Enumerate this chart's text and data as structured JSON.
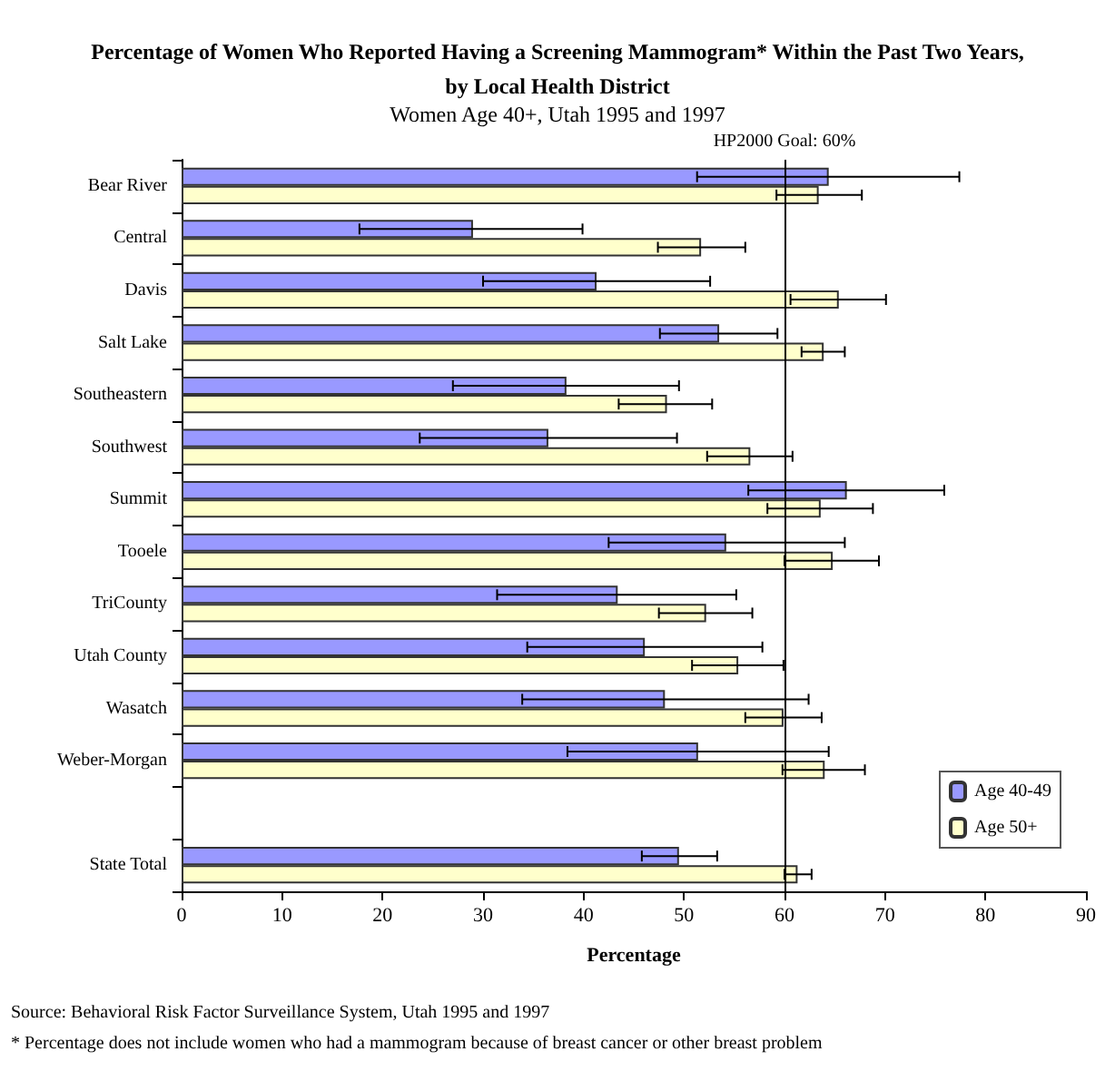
{
  "chart_data": {
    "type": "bar",
    "orientation": "horizontal",
    "title": "Percentage of Women Who Reported Having a Screening Mammogram* Within the Past Two Years,\nby Local Health District",
    "subtitle": "Women Age 40+, Utah 1995 and 1997",
    "xlabel": "Percentage",
    "categories": [
      "Bear River",
      "Central",
      "Davis",
      "Salt Lake",
      "Southeastern",
      "Southwest",
      "Summit",
      "Tooele",
      "TriCounty",
      "Utah County",
      "Wasatch",
      "Weber-Morgan",
      null,
      "State Total"
    ],
    "series": [
      {
        "name": "Age 40-49",
        "color": "#9999ff",
        "values": [
          64.4,
          29.0,
          41.3,
          53.5,
          38.3,
          36.5,
          66.2,
          54.2,
          43.4,
          46.1,
          48.1,
          51.4,
          null,
          49.5
        ],
        "errors": [
          [
            51.3,
            77.4
          ],
          [
            17.7,
            39.9
          ],
          [
            30.0,
            52.6
          ],
          [
            47.6,
            59.3
          ],
          [
            27.0,
            49.5
          ],
          [
            23.7,
            49.3
          ],
          [
            56.4,
            75.9
          ],
          [
            42.5,
            66.0
          ],
          [
            31.4,
            55.2
          ],
          [
            34.4,
            57.8
          ],
          [
            33.9,
            62.4
          ],
          [
            38.4,
            64.4
          ],
          null,
          [
            45.8,
            53.3
          ]
        ]
      },
      {
        "name": "Age 50+",
        "color": "#ffffcc",
        "values": [
          63.4,
          51.7,
          65.4,
          63.9,
          48.3,
          56.6,
          63.6,
          64.8,
          52.2,
          55.4,
          59.9,
          64.0,
          null,
          61.3
        ],
        "errors": [
          [
            59.2,
            67.7
          ],
          [
            47.4,
            56.1
          ],
          [
            60.6,
            70.1
          ],
          [
            61.7,
            66.0
          ],
          [
            43.5,
            52.8
          ],
          [
            52.3,
            60.8
          ],
          [
            58.3,
            68.8
          ],
          [
            60.0,
            69.4
          ],
          [
            47.5,
            56.8
          ],
          [
            50.8,
            59.9
          ],
          [
            56.1,
            63.7
          ],
          [
            59.8,
            68.0
          ],
          null,
          [
            60.0,
            62.7
          ]
        ]
      }
    ],
    "xlim": [
      0,
      90
    ],
    "xticks": [
      0,
      10,
      20,
      30,
      40,
      50,
      60,
      70,
      80,
      90
    ],
    "ref_lines": [
      {
        "axis": "x",
        "value": 60,
        "label": "HP2000 Goal: 60%",
        "color": "#000000"
      }
    ],
    "legend": "right",
    "grid": false,
    "annotations": [
      "Source: Behavioral Risk Factor Surveillance System, Utah 1995 and 1997",
      "* Percentage does not include women who had a mammogram because of breast cancer or other breast problem"
    ]
  }
}
